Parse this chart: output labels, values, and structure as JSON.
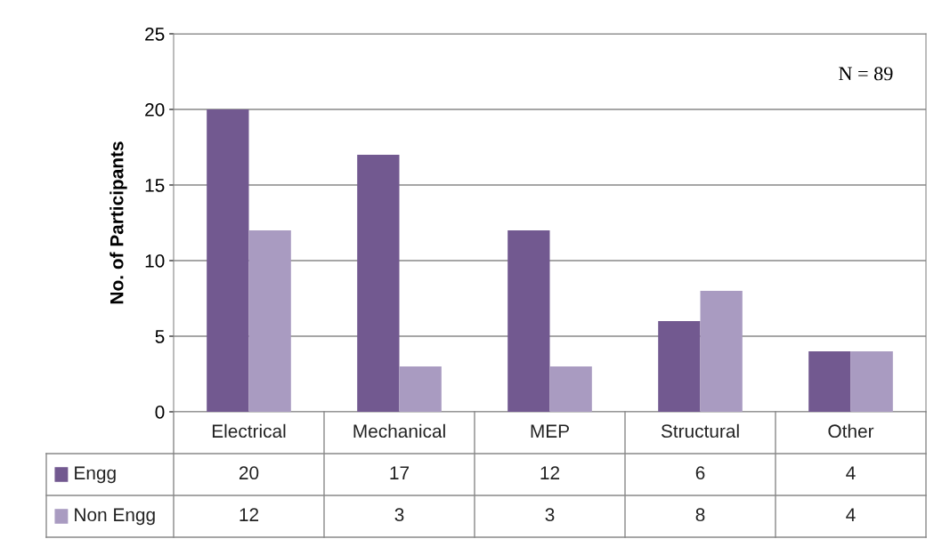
{
  "chart_data": {
    "type": "bar",
    "ylabel": "No. of Participants",
    "categories": [
      "Electrical",
      "Mechanical",
      "MEP",
      "Structural",
      "Other"
    ],
    "series": [
      {
        "name": "Engg",
        "color": "#725990",
        "values": [
          20,
          17,
          12,
          6,
          4
        ]
      },
      {
        "name": "Non Engg",
        "color": "#a99bc1",
        "values": [
          12,
          3,
          3,
          8,
          4
        ]
      }
    ],
    "ylim": [
      0,
      25
    ],
    "yticks": [
      0,
      5,
      10,
      15,
      20,
      25
    ],
    "grid": "y",
    "legend": "bottom",
    "data_labels": true,
    "annotations": [
      {
        "text": "N = 89"
      }
    ]
  }
}
